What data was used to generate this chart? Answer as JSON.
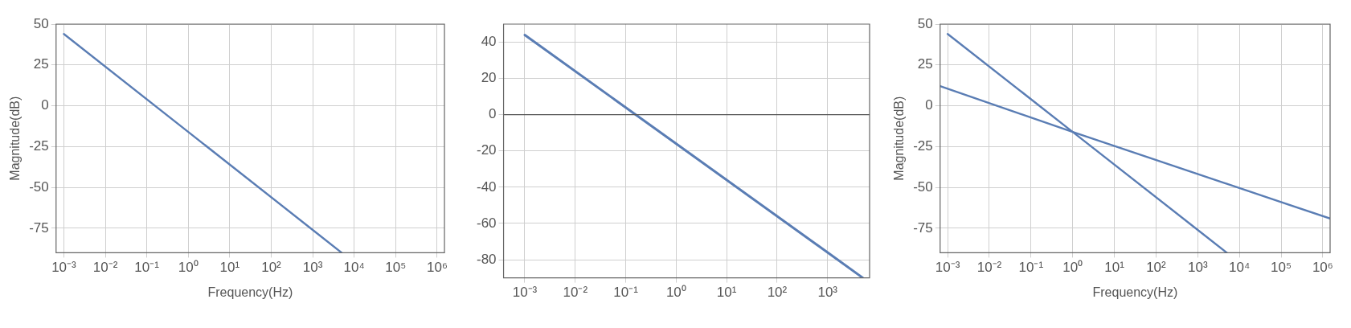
{
  "chart_data": [
    {
      "type": "line",
      "xlabel": "Frequency(Hz)",
      "ylabel": "Magnitude(dB)",
      "log": "x",
      "grid": true,
      "xlim": [
        0.00065,
        1500000
      ],
      "ylim": [
        -90,
        50
      ],
      "xticks": [
        {
          "value": 0.001,
          "label": "10⁻³"
        },
        {
          "value": 0.01,
          "label": "10⁻²"
        },
        {
          "value": 0.1,
          "label": "10⁻¹"
        },
        {
          "value": 1,
          "label": "10⁰"
        },
        {
          "value": 10,
          "label": "10¹"
        },
        {
          "value": 100,
          "label": "10²"
        },
        {
          "value": 1000,
          "label": "10³"
        },
        {
          "value": 10000,
          "label": "10⁴"
        },
        {
          "value": 100000,
          "label": "10⁵"
        },
        {
          "value": 1000000,
          "label": "10⁶"
        }
      ],
      "yticks": [
        -75,
        -50,
        -25,
        0,
        25,
        50
      ],
      "series": [
        {
          "color": "#5a7db4",
          "x": [
            0.001,
            1,
            1000,
            5000
          ],
          "values": [
            44,
            -16,
            -76,
            -90
          ]
        }
      ]
    },
    {
      "type": "line",
      "log": "x",
      "grid": true,
      "xlim": [
        0.00038,
        6800
      ],
      "ylim": [
        -90,
        50
      ],
      "xticks": [
        {
          "value": 0.001,
          "label": "10⁻³"
        },
        {
          "value": 0.01,
          "label": "10⁻²"
        },
        {
          "value": 0.1,
          "label": "10⁻¹"
        },
        {
          "value": 1,
          "label": "10⁰"
        },
        {
          "value": 10,
          "label": "10¹"
        },
        {
          "value": 100,
          "label": "10²"
        },
        {
          "value": 1000,
          "label": "10³"
        }
      ],
      "yticks": [
        -80,
        -60,
        -40,
        -20,
        0,
        20,
        40
      ],
      "ref_lines": [
        {
          "axis": "y",
          "value": 0,
          "color": "#555555"
        }
      ],
      "series": [
        {
          "color": "#5a7db4",
          "x": [
            0.001,
            1,
            1000,
            5000
          ],
          "values": [
            44,
            -16,
            -76,
            -90
          ]
        }
      ]
    },
    {
      "type": "line",
      "xlabel": "Frequency(Hz)",
      "ylabel": "Magnitude(dB)",
      "log": "x",
      "grid": true,
      "xlim": [
        0.00066,
        1500000
      ],
      "ylim": [
        -90,
        50
      ],
      "xticks": [
        {
          "value": 0.001,
          "label": "10⁻³"
        },
        {
          "value": 0.01,
          "label": "10⁻²"
        },
        {
          "value": 0.1,
          "label": "10⁻¹"
        },
        {
          "value": 1,
          "label": "10⁰"
        },
        {
          "value": 10,
          "label": "10¹"
        },
        {
          "value": 100,
          "label": "10²"
        },
        {
          "value": 1000,
          "label": "10³"
        },
        {
          "value": 10000,
          "label": "10⁴"
        },
        {
          "value": 100000,
          "label": "10⁵"
        },
        {
          "value": 1000000,
          "label": "10⁶"
        }
      ],
      "yticks": [
        -75,
        -50,
        -25,
        0,
        25,
        50
      ],
      "series": [
        {
          "color": "#5a7db4",
          "x": [
            0.001,
            1,
            1000,
            5000
          ],
          "values": [
            44,
            -16,
            -76,
            -90
          ]
        },
        {
          "color": "#5a7db4",
          "x": [
            0.00066,
            1,
            100000,
            1500000
          ],
          "values": [
            12,
            -16,
            -59,
            -69
          ]
        }
      ]
    }
  ]
}
